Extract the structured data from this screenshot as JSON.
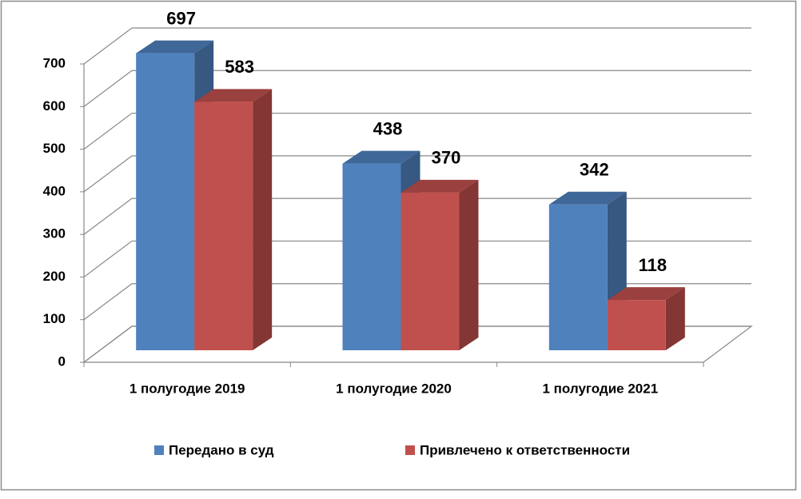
{
  "chart_data": {
    "type": "bar3d",
    "categories": [
      "1 полугодие 2019",
      "1 полугодие 2020",
      "1 полугодие 2021"
    ],
    "series": [
      {
        "name": "Передано в суд",
        "color": "#4f81bd",
        "values": [
          697,
          438,
          342
        ]
      },
      {
        "name": "Привлечено к ответственности",
        "color": "#c0504d",
        "values": [
          583,
          370,
          118
        ]
      }
    ],
    "ylim": [
      0,
      700
    ],
    "yticks": [
      0,
      100,
      200,
      300,
      400,
      500,
      600,
      700
    ],
    "grid": true,
    "legend": "bottom"
  }
}
